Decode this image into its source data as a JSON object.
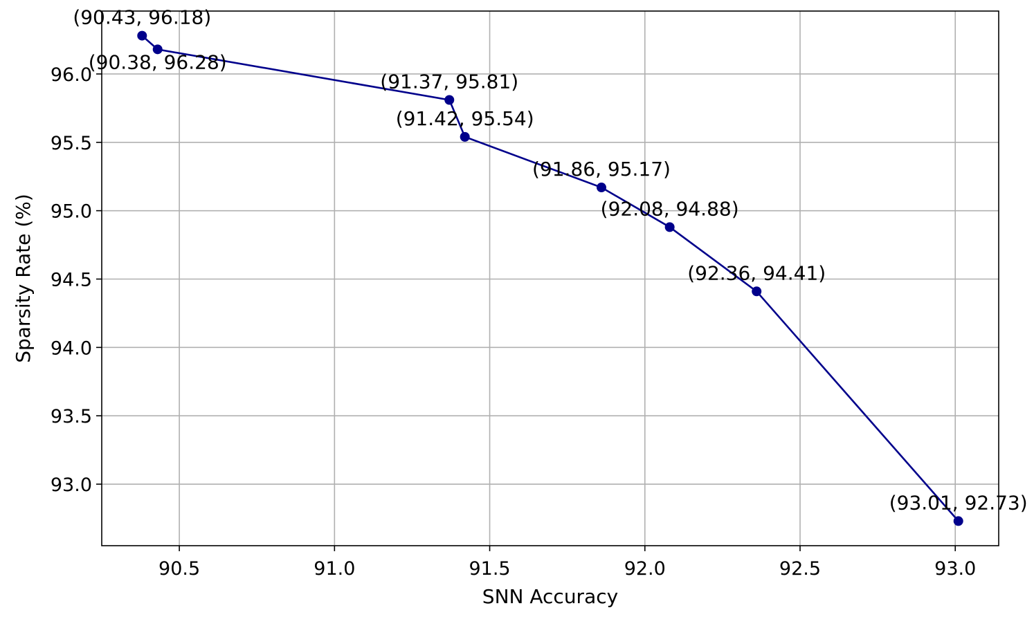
{
  "chart_data": {
    "type": "line",
    "title": "",
    "xlabel": "SNN Accuracy",
    "ylabel": "Sparsity Rate (%)",
    "xlim": [
      90.25,
      93.14
    ],
    "ylim": [
      92.55,
      96.46
    ],
    "xticks": [
      90.5,
      91.0,
      91.5,
      92.0,
      92.5,
      93.0
    ],
    "yticks": [
      93.0,
      93.5,
      94.0,
      94.5,
      95.0,
      95.5,
      96.0
    ],
    "xtick_labels": [
      "90.5",
      "91.0",
      "91.5",
      "92.0",
      "92.5",
      "93.0"
    ],
    "ytick_labels": [
      "93.0",
      "93.5",
      "94.0",
      "94.5",
      "95.0",
      "95.5",
      "96.0"
    ],
    "grid": true,
    "line_color": "#00008b",
    "series": [
      {
        "x": [
          90.38,
          90.43,
          91.37,
          91.42,
          91.86,
          92.08,
          92.36,
          93.01
        ],
        "y": [
          96.28,
          96.18,
          95.81,
          95.54,
          95.17,
          94.88,
          94.41,
          92.73
        ]
      }
    ],
    "annotations": [
      {
        "text": "(90.43, 96.18)",
        "x": 90.38,
        "y": 96.28,
        "placement": "above"
      },
      {
        "text": "(90.38, 96.28)",
        "x": 90.43,
        "y": 96.18,
        "placement": "below"
      },
      {
        "text": "(91.37, 95.81)",
        "x": 91.37,
        "y": 95.81,
        "placement": "above"
      },
      {
        "text": "(91.42, 95.54)",
        "x": 91.42,
        "y": 95.54,
        "placement": "above"
      },
      {
        "text": "(91.86, 95.17)",
        "x": 91.86,
        "y": 95.17,
        "placement": "above"
      },
      {
        "text": "(92.08, 94.88)",
        "x": 92.08,
        "y": 94.88,
        "placement": "above"
      },
      {
        "text": "(92.36, 94.41)",
        "x": 92.36,
        "y": 94.41,
        "placement": "above"
      },
      {
        "text": "(93.01, 92.73)",
        "x": 93.01,
        "y": 92.73,
        "placement": "above"
      }
    ]
  }
}
